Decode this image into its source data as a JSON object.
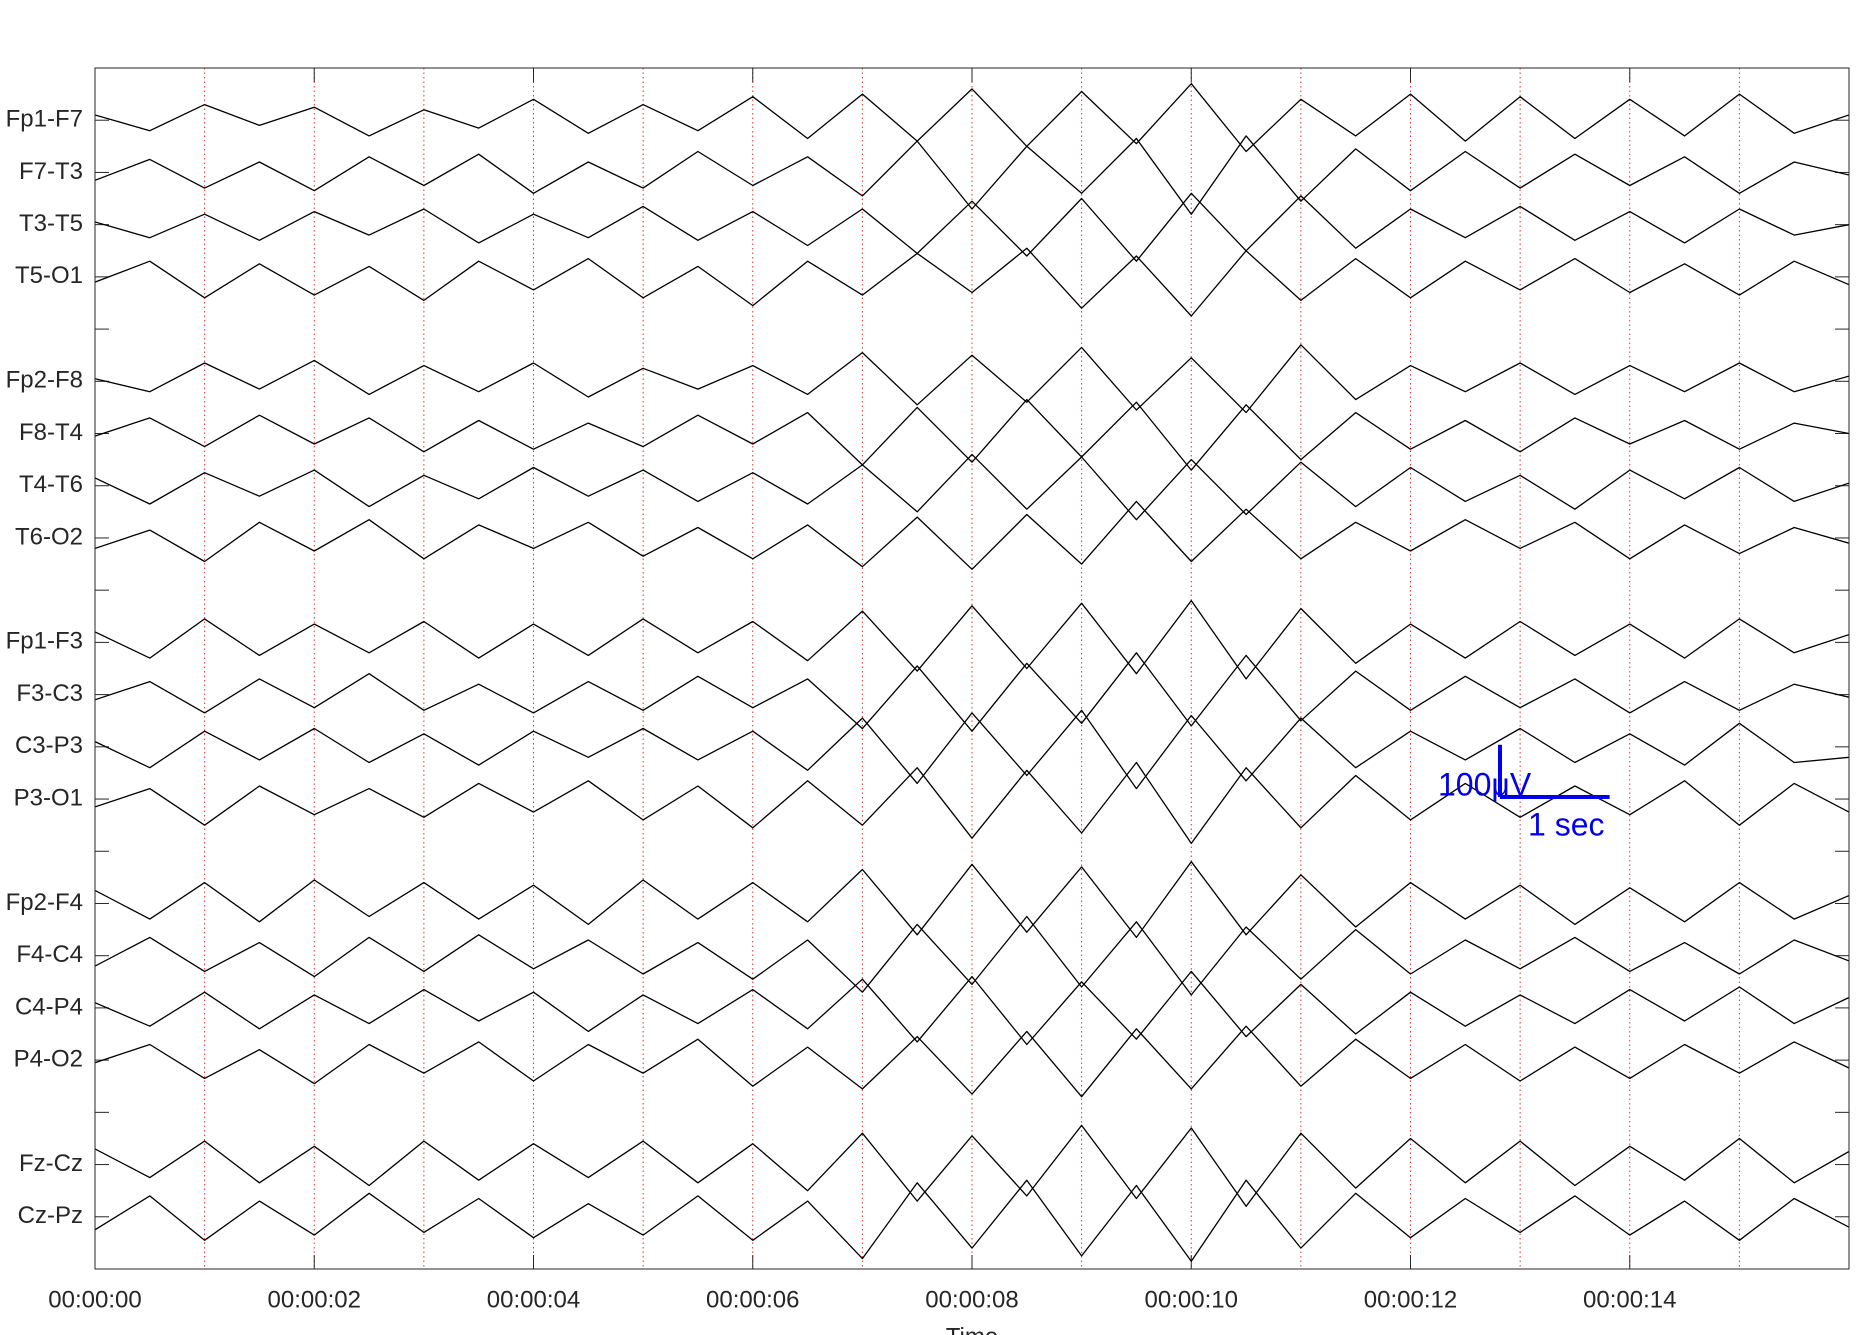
{
  "chart_data": {
    "type": "eeg",
    "xlabel": "Time",
    "color": "#000000",
    "grid_color": "#e03030",
    "xlim": [
      0,
      16
    ],
    "xticks": [
      {
        "value": 0,
        "label": "00:00:00"
      },
      {
        "value": 2,
        "label": "00:00:02"
      },
      {
        "value": 4,
        "label": "00:00:04"
      },
      {
        "value": 6,
        "label": "00:00:06"
      },
      {
        "value": 8,
        "label": "00:00:08"
      },
      {
        "value": 10,
        "label": "00:00:10"
      },
      {
        "value": 12,
        "label": "00:00:12"
      },
      {
        "value": 14,
        "label": "00:00:14"
      }
    ],
    "xgrid": [
      1,
      2,
      3,
      4,
      5,
      6,
      7,
      8,
      9,
      10,
      11,
      12,
      13,
      14,
      15
    ],
    "channels": [
      "Fp1-F7",
      "F7-T3",
      "T3-T5",
      "T5-O1",
      null,
      "Fp2-F8",
      "F8-T4",
      "T4-T6",
      "T6-O2",
      null,
      "Fp1-F3",
      "F3-C3",
      "C3-P3",
      "P3-O1",
      null,
      "Fp2-F4",
      "F4-C4",
      "C4-P4",
      "P4-O2",
      null,
      "Fz-Cz",
      "Cz-Pz"
    ],
    "x": [
      0,
      0.5,
      1,
      1.5,
      2,
      2.5,
      3,
      3.5,
      4,
      4.5,
      5,
      5.5,
      6,
      6.5,
      7,
      7.5,
      8,
      8.5,
      9,
      9.5,
      10,
      10.5,
      11,
      11.5,
      12,
      12.5,
      13,
      13.5,
      14,
      14.5,
      15,
      15.5,
      16
    ],
    "series": [
      {
        "values": [
          10,
          -20,
          30,
          -10,
          25,
          -30,
          20,
          -15,
          40,
          -25,
          30,
          -20,
          45,
          -35,
          50,
          -40,
          60,
          -50,
          55,
          -45,
          70,
          -60,
          40,
          -30,
          50,
          -40,
          45,
          -35,
          40,
          -30,
          50,
          -25,
          10
        ]
      },
      {
        "values": [
          -15,
          25,
          -30,
          20,
          -35,
          30,
          -25,
          35,
          -40,
          20,
          -30,
          40,
          -25,
          30,
          -45,
          60,
          -70,
          50,
          -40,
          65,
          -80,
          70,
          -55,
          45,
          -35,
          40,
          -30,
          35,
          -25,
          30,
          -40,
          20,
          -5
        ]
      },
      {
        "values": [
          5,
          -25,
          20,
          -30,
          25,
          -20,
          30,
          -35,
          20,
          -25,
          35,
          -30,
          25,
          -40,
          30,
          -55,
          45,
          -60,
          50,
          -70,
          60,
          -50,
          55,
          -45,
          30,
          -25,
          35,
          -30,
          25,
          -35,
          30,
          -20,
          0
        ]
      },
      {
        "values": [
          -10,
          30,
          -40,
          25,
          -35,
          20,
          -45,
          30,
          -25,
          35,
          -40,
          20,
          -55,
          30,
          -35,
          45,
          -30,
          55,
          -60,
          40,
          -75,
          50,
          -45,
          35,
          -40,
          30,
          -25,
          35,
          -30,
          25,
          -35,
          30,
          -15
        ]
      },
      {
        "values": [
          5,
          -20,
          35,
          -15,
          40,
          -25,
          30,
          -20,
          35,
          -30,
          25,
          -15,
          30,
          -25,
          55,
          -45,
          50,
          -40,
          65,
          -55,
          45,
          -60,
          70,
          -35,
          30,
          -20,
          35,
          -25,
          30,
          -20,
          35,
          -20,
          10
        ]
      },
      {
        "values": [
          -5,
          30,
          -25,
          35,
          -20,
          30,
          -35,
          25,
          -30,
          20,
          -25,
          35,
          -20,
          40,
          -60,
          50,
          -55,
          65,
          -45,
          60,
          -70,
          55,
          -50,
          40,
          -30,
          25,
          -35,
          30,
          -20,
          25,
          -30,
          20,
          0
        ]
      },
      {
        "values": [
          15,
          -35,
          25,
          -20,
          30,
          -40,
          20,
          -25,
          35,
          -20,
          30,
          -30,
          25,
          -35,
          40,
          -50,
          60,
          -45,
          55,
          -65,
          50,
          -55,
          45,
          -40,
          35,
          -30,
          20,
          -45,
          30,
          -25,
          35,
          -30,
          5
        ]
      },
      {
        "values": [
          -20,
          15,
          -45,
          30,
          -25,
          35,
          -40,
          25,
          -20,
          30,
          -35,
          20,
          -40,
          25,
          -55,
          40,
          -60,
          45,
          -50,
          70,
          -45,
          55,
          -40,
          30,
          -25,
          35,
          -20,
          30,
          -40,
          25,
          -30,
          20,
          -10
        ]
      },
      {
        "values": [
          20,
          -30,
          45,
          -25,
          35,
          -20,
          40,
          -30,
          35,
          -25,
          45,
          -20,
          40,
          -35,
          60,
          -55,
          70,
          -50,
          75,
          -60,
          80,
          -70,
          65,
          -40,
          35,
          -30,
          40,
          -25,
          35,
          -30,
          45,
          -20,
          15
        ]
      },
      {
        "values": [
          -10,
          25,
          -35,
          30,
          -25,
          40,
          -30,
          20,
          -35,
          25,
          -30,
          35,
          -25,
          30,
          -65,
          55,
          -70,
          60,
          -55,
          80,
          -60,
          75,
          -50,
          45,
          -30,
          35,
          -25,
          30,
          -35,
          25,
          -30,
          20,
          -5
        ]
      },
      {
        "values": [
          10,
          -40,
          30,
          -25,
          35,
          -30,
          25,
          -35,
          30,
          -20,
          35,
          -25,
          30,
          -45,
          55,
          -70,
          65,
          -55,
          70,
          -80,
          60,
          -65,
          55,
          -40,
          30,
          -25,
          35,
          -30,
          25,
          -35,
          45,
          -30,
          -20
        ]
      },
      {
        "values": [
          -15,
          20,
          -50,
          25,
          -30,
          20,
          -35,
          30,
          -25,
          35,
          -40,
          25,
          -55,
          35,
          -50,
          60,
          -75,
          55,
          -65,
          70,
          -85,
          60,
          -55,
          45,
          -40,
          30,
          -35,
          25,
          -30,
          35,
          -50,
          30,
          -25
        ]
      },
      {
        "values": [
          25,
          -30,
          40,
          -35,
          45,
          -25,
          40,
          -30,
          35,
          -40,
          45,
          -30,
          40,
          -35,
          65,
          -60,
          75,
          -55,
          70,
          -65,
          80,
          -60,
          55,
          -45,
          40,
          -30,
          35,
          -40,
          30,
          -35,
          40,
          -30,
          15
        ]
      },
      {
        "values": [
          -20,
          35,
          -30,
          25,
          -40,
          35,
          -30,
          40,
          -25,
          30,
          -35,
          25,
          -45,
          30,
          -70,
          60,
          -55,
          75,
          -60,
          65,
          -75,
          55,
          -45,
          50,
          -35,
          30,
          -25,
          35,
          -30,
          25,
          -35,
          30,
          -10
        ]
      },
      {
        "values": [
          10,
          -35,
          30,
          -40,
          25,
          -30,
          35,
          -25,
          30,
          -45,
          25,
          -30,
          35,
          -40,
          55,
          -65,
          60,
          -70,
          50,
          -60,
          70,
          -55,
          45,
          -50,
          30,
          -35,
          25,
          -30,
          35,
          -25,
          40,
          -30,
          20
        ]
      },
      {
        "values": [
          -5,
          30,
          -35,
          20,
          -45,
          30,
          -25,
          35,
          -40,
          30,
          -25,
          40,
          -50,
          25,
          -55,
          45,
          -65,
          55,
          -70,
          60,
          -55,
          65,
          -50,
          40,
          -35,
          30,
          -40,
          25,
          -35,
          30,
          -25,
          35,
          -15
        ]
      },
      {
        "values": [
          30,
          -25,
          45,
          -35,
          35,
          -40,
          45,
          -30,
          40,
          -25,
          45,
          -35,
          40,
          -50,
          60,
          -70,
          55,
          -60,
          75,
          -65,
          70,
          -80,
          60,
          -45,
          50,
          -35,
          45,
          -40,
          35,
          -30,
          50,
          -35,
          25
        ]
      },
      {
        "values": [
          -25,
          40,
          -45,
          30,
          -35,
          45,
          -30,
          35,
          -40,
          25,
          -35,
          40,
          -45,
          30,
          -80,
          65,
          -60,
          70,
          -75,
          60,
          -85,
          70,
          -60,
          45,
          -40,
          35,
          -30,
          40,
          -35,
          30,
          -45,
          35,
          -20
        ]
      }
    ],
    "scale_bar": {
      "amplitude": 100,
      "amplitude_label": "100μV",
      "duration": 1,
      "duration_label": "1 sec"
    }
  }
}
